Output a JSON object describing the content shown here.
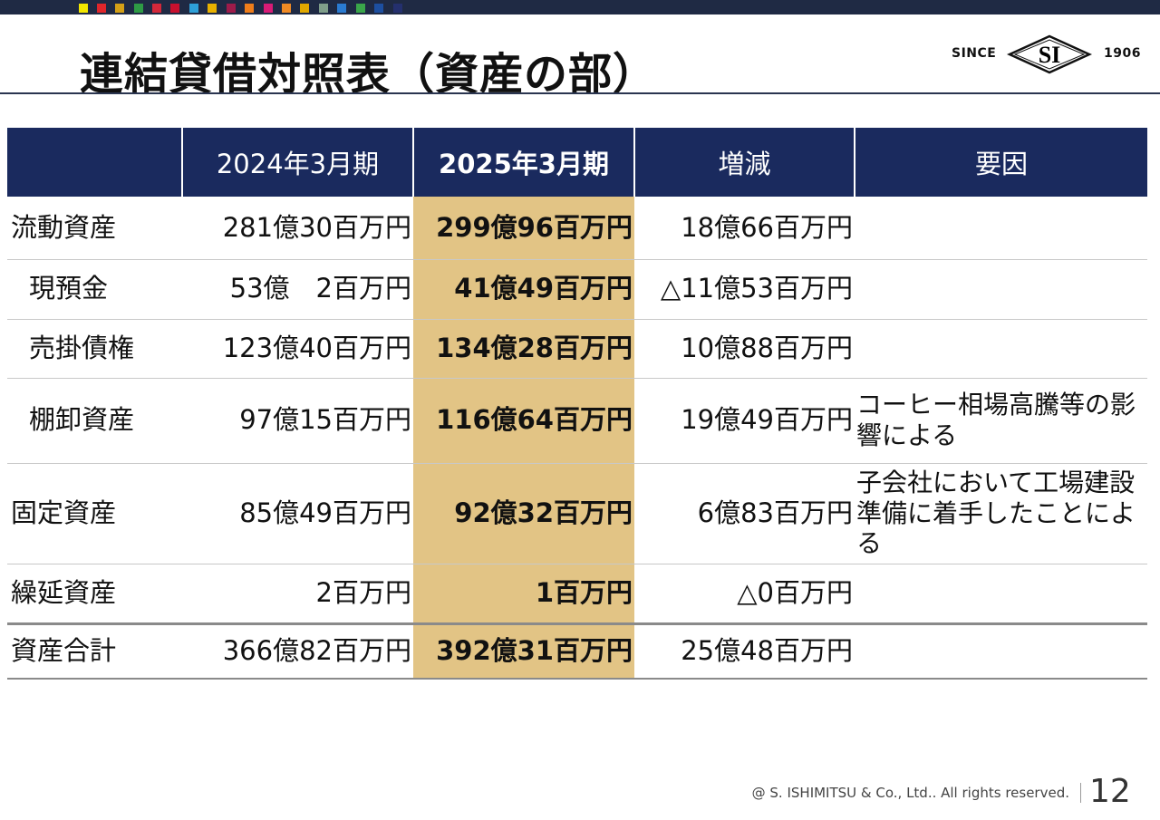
{
  "header": {
    "title": "連結貸借対照表（資産の部）"
  },
  "logo": {
    "since": "SINCE",
    "mark": "SI",
    "year": "1906"
  },
  "table": {
    "columns": [
      "2024年3月期",
      "2025年3月期",
      "増減",
      "要因"
    ],
    "rows": [
      {
        "label": "流動資産",
        "fy2024": "281億30百万円",
        "fy2025": "299億96百万円",
        "change": "18億66百万円"
      },
      {
        "label": "現預金",
        "fy2024": "53億　2百万円",
        "fy2025": "41億49百万円",
        "change": "△11億53百万円"
      },
      {
        "label": "売掛債権",
        "fy2024": "123億40百万円",
        "fy2025": "134億28百万円",
        "change": "10億88百万円"
      },
      {
        "label": "棚卸資産",
        "fy2024": "97億15百万円",
        "fy2025": "116億64百万円",
        "change": "19億49百万円",
        "reason": "コーヒー相場高騰等の影響による"
      },
      {
        "label": "固定資産",
        "fy2024": "85億49百万円",
        "fy2025": "92億32百万円",
        "change": "6億83百万円",
        "reason": "子会社において工場建設準備に着手したことによる"
      },
      {
        "label": "繰延資産",
        "fy2024": "2百万円",
        "fy2025": "1百万円",
        "change": "△0百万円"
      },
      {
        "label": "資産合計",
        "fy2024": "366億82百万円",
        "fy2025": "392億31百万円",
        "change": "25億48百万円"
      }
    ]
  },
  "footer": {
    "copyright": "@ S. ISHIMITSU & Co., Ltd.. All rights reserved.",
    "page": "12"
  }
}
